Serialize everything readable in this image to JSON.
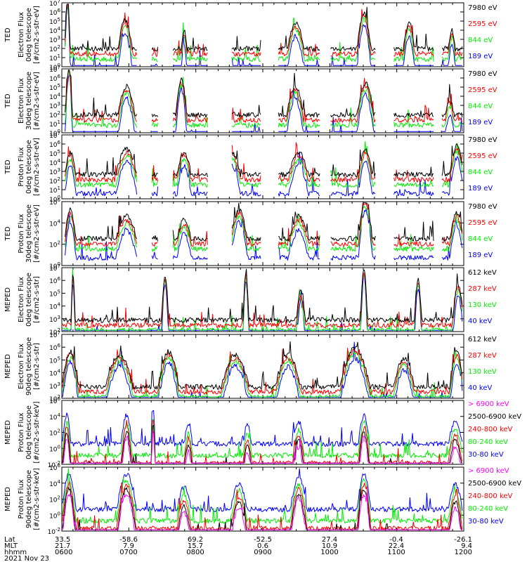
{
  "chart_data": [
    {
      "type": "line",
      "ylabel": [
        "TED",
        "Electron Flux",
        "0deg telescope",
        "[#/cm2-s-str-eV]"
      ],
      "y_tick_exponents": [
        "7",
        "6",
        "5",
        "4",
        "3",
        "2",
        "1",
        "0"
      ],
      "ylim": [
        1,
        10000000
      ],
      "scale": "log",
      "legend": [
        {
          "label": "7980 eV",
          "color": "#000000"
        },
        {
          "label": "2595 eV",
          "color": "#ff0000"
        },
        {
          "label": "844 eV",
          "color": "#00ee00"
        },
        {
          "label": "189 eV",
          "color": "#0000ff"
        }
      ]
    },
    {
      "type": "line",
      "ylabel": [
        "TED",
        "Electron Flux",
        "30deg telescope",
        "[#/cm2-s-str-eV]"
      ],
      "y_tick_exponents": [
        "7",
        "6",
        "5",
        "4",
        "3",
        "2",
        "1",
        "0"
      ],
      "ylim": [
        1,
        10000000
      ],
      "scale": "log",
      "legend": [
        {
          "label": "7980 eV",
          "color": "#000000"
        },
        {
          "label": "2595 eV",
          "color": "#ff0000"
        },
        {
          "label": "844 eV",
          "color": "#00ee00"
        },
        {
          "label": "189 eV",
          "color": "#0000ff"
        }
      ]
    },
    {
      "type": "line",
      "ylabel": [
        "TED",
        "Proton Flux",
        "0deg telescope",
        "[#/cm2-s-str-eV]"
      ],
      "y_tick_exponents": [
        "7",
        "6",
        "5",
        "4",
        "3",
        "2",
        "1",
        "0"
      ],
      "ylim": [
        1,
        10000000
      ],
      "scale": "log",
      "legend": [
        {
          "label": "7980 eV",
          "color": "#000000"
        },
        {
          "label": "2595 eV",
          "color": "#ff0000"
        },
        {
          "label": "844 eV",
          "color": "#00ee00"
        },
        {
          "label": "189 eV",
          "color": "#0000ff"
        }
      ]
    },
    {
      "type": "line",
      "ylabel": [
        "TED",
        "Proton Flux",
        "30deg telescope",
        "[#/cm2-s-str-eV]"
      ],
      "y_tick_exponents": [
        "6",
        "4",
        "2",
        "0"
      ],
      "ylim": [
        1,
        1000000
      ],
      "scale": "log",
      "legend": [
        {
          "label": "7980 eV",
          "color": "#000000"
        },
        {
          "label": "2595 eV",
          "color": "#ff0000"
        },
        {
          "label": "844 eV",
          "color": "#00ee00"
        },
        {
          "label": "189 eV",
          "color": "#0000ff"
        }
      ]
    },
    {
      "type": "line",
      "ylabel": [
        "MEPED",
        "Electron Flux",
        "0deg telescope",
        "[#/cm2-s-str]"
      ],
      "y_tick_exponents": [
        "7",
        "6",
        "5",
        "4",
        "3",
        "2"
      ],
      "ylim": [
        100,
        10000000
      ],
      "scale": "log",
      "legend": [
        {
          "label": "612 keV",
          "color": "#000000"
        },
        {
          "label": "287 keV",
          "color": "#ff0000"
        },
        {
          "label": "130 keV",
          "color": "#00ee00"
        },
        {
          "label": "40 keV",
          "color": "#0000ff"
        }
      ]
    },
    {
      "type": "line",
      "ylabel": [
        "MEPED",
        "Electron Flux",
        "90deg telescope",
        "[#/cm2-s-str]"
      ],
      "y_tick_exponents": [
        "7",
        "6",
        "5",
        "4",
        "3",
        "2"
      ],
      "ylim": [
        100,
        10000000
      ],
      "scale": "log",
      "legend": [
        {
          "label": "612 keV",
          "color": "#000000"
        },
        {
          "label": "287 keV",
          "color": "#ff0000"
        },
        {
          "label": "130 keV",
          "color": "#00ee00"
        },
        {
          "label": "40 keV",
          "color": "#0000ff"
        }
      ]
    },
    {
      "type": "line",
      "ylabel": [
        "MEPED",
        "Proton Flux",
        "0deg telescope",
        "[#/cm2-s-str-keV]"
      ],
      "y_tick_exponents": [
        "6",
        "4",
        "2",
        "0",
        "-2"
      ],
      "ylim": [
        0.01,
        1000000
      ],
      "scale": "log",
      "legend": [
        {
          "label": "> 6900 keV",
          "color": "#ff00ff"
        },
        {
          "label": "2500-6900 keV",
          "color": "#000000"
        },
        {
          "label": "240-800 keV",
          "color": "#ff0000"
        },
        {
          "label": "80-240 keV",
          "color": "#00ee00"
        },
        {
          "label": "30-80 keV",
          "color": "#0000ff"
        }
      ]
    },
    {
      "type": "line",
      "ylabel": [
        "MEPED",
        "Proton Flux",
        "90deg telescope",
        "[#/cm2-s-str-keV]"
      ],
      "y_tick_exponents": [
        "6",
        "4",
        "2",
        "0",
        "-2"
      ],
      "ylim": [
        0.01,
        1000000
      ],
      "scale": "log",
      "legend": [
        {
          "label": "> 6900 keV",
          "color": "#ff00ff"
        },
        {
          "label": "2500-6900 keV",
          "color": "#000000"
        },
        {
          "label": "240-800 keV",
          "color": "#ff0000"
        },
        {
          "label": "80-240 keV",
          "color": "#00ee00"
        },
        {
          "label": "30-80 keV",
          "color": "#0000ff"
        }
      ]
    }
  ],
  "x_axis": {
    "row_labels": [
      "Lat",
      "MLT",
      "hhmm"
    ],
    "columns": [
      {
        "lat": "33.5",
        "mlt": "21.7",
        "hhmm": "0600"
      },
      {
        "lat": "-58.6",
        "mlt": "7.9",
        "hhmm": "0700"
      },
      {
        "lat": "69.2",
        "mlt": "15.7",
        "hhmm": "0800"
      },
      {
        "lat": "-52.5",
        "mlt": "0.6",
        "hhmm": "0900"
      },
      {
        "lat": "27.4",
        "mlt": "10.9",
        "hhmm": "1000"
      },
      {
        "lat": "-0.4",
        "mlt": "22.4",
        "hhmm": "1100"
      },
      {
        "lat": "-26.1",
        "mlt": "9.4",
        "hhmm": "1200"
      }
    ],
    "date": "2021 Nov 23"
  }
}
